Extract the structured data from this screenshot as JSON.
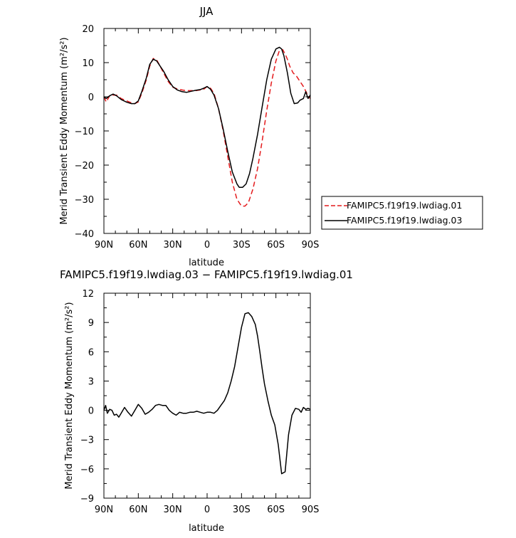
{
  "chart_data": [
    {
      "type": "line",
      "title": "JJA",
      "xlabel": "latitude",
      "ylabel": "Merid Transient Eddy Momentum (m²/s²)",
      "ylim": [
        -40,
        20
      ],
      "xlim": [
        -90,
        90
      ],
      "x_ticks": [
        -90,
        -60,
        -30,
        0,
        30,
        60,
        90
      ],
      "x_tick_labels": [
        "90N",
        "60N",
        "30N",
        "0",
        "30S",
        "60S",
        "90S"
      ],
      "y_ticks": [
        -40,
        -30,
        -20,
        -10,
        0,
        10,
        20
      ],
      "y_tick_labels": [
        "−40",
        "−30",
        "−20",
        "−10",
        "0",
        "10",
        "20"
      ],
      "grid": false,
      "legend": "right",
      "series": [
        {
          "name": "FAMIPC5.f19f19.lwdiag.01",
          "color": "#e41a1c",
          "dash": "dashed",
          "x": [
            -90,
            -88,
            -85,
            -82,
            -79,
            -75,
            -70,
            -66,
            -63,
            -60,
            -57,
            -53,
            -50,
            -47,
            -44,
            -41,
            -38,
            -34,
            -30,
            -26,
            -22,
            -18,
            -14,
            -10,
            -6,
            -3,
            0,
            3,
            6,
            10,
            14,
            18,
            22,
            26,
            30,
            33,
            36,
            40,
            44,
            48,
            52,
            56,
            60,
            63,
            66,
            68,
            70,
            72,
            75,
            78,
            81,
            84,
            87,
            89,
            90
          ],
          "y": [
            0,
            -1.5,
            0.3,
            0.5,
            0.5,
            -0.5,
            -1.2,
            -1.8,
            -2.0,
            -1.5,
            1.0,
            5.0,
            9.0,
            11.2,
            10.8,
            9.0,
            7.0,
            4.5,
            2.8,
            2.3,
            2.0,
            1.8,
            1.8,
            1.8,
            2.0,
            2.2,
            3.0,
            2.5,
            1.0,
            -3.5,
            -10.0,
            -17.5,
            -25.0,
            -30.0,
            -32.0,
            -32.0,
            -31.0,
            -27.0,
            -21.0,
            -13.0,
            -4.0,
            4.0,
            10.5,
            13.5,
            13.8,
            12.5,
            11.0,
            9.0,
            7.0,
            6.0,
            4.5,
            3.0,
            1.0,
            -0.2,
            -0.5
          ]
        },
        {
          "name": "FAMIPC5.f19f19.lwdiag.03",
          "color": "#000000",
          "dash": "solid",
          "x": [
            -90,
            -88,
            -85,
            -82,
            -79,
            -75,
            -70,
            -66,
            -63,
            -60,
            -57,
            -53,
            -50,
            -47,
            -44,
            -41,
            -38,
            -34,
            -30,
            -26,
            -22,
            -18,
            -14,
            -10,
            -6,
            -3,
            0,
            3,
            6,
            10,
            14,
            18,
            22,
            26,
            28,
            31,
            34,
            37,
            40,
            44,
            48,
            52,
            56,
            60,
            63,
            65,
            67,
            70,
            73,
            76,
            79,
            81,
            84,
            86,
            88,
            90
          ],
          "y": [
            0,
            -0.5,
            0.3,
            0.8,
            0.3,
            -0.8,
            -1.6,
            -2.0,
            -2.0,
            -1.2,
            1.5,
            5.5,
            9.5,
            11.0,
            10.5,
            9.0,
            7.5,
            5.0,
            3.0,
            2.0,
            1.5,
            1.3,
            1.6,
            1.9,
            2.1,
            2.5,
            3.0,
            2.2,
            0.5,
            -3.5,
            -9.5,
            -16.0,
            -22.0,
            -25.5,
            -26.5,
            -26.5,
            -25.5,
            -22.5,
            -18.0,
            -11.0,
            -3.0,
            5.0,
            11.0,
            14.0,
            14.5,
            14.0,
            12.0,
            7.0,
            1.0,
            -2.0,
            -1.8,
            -1.0,
            -0.5,
            1.5,
            -0.5,
            0.5
          ]
        }
      ]
    },
    {
      "type": "line",
      "title": "FAMIPC5.f19f19.lwdiag.03 − FAMIPC5.f19f19.lwdiag.01",
      "xlabel": "latitude",
      "ylabel": "Merid Transient Eddy Momentum (m²/s²)",
      "ylim": [
        -9,
        12
      ],
      "xlim": [
        -90,
        90
      ],
      "x_ticks": [
        -90,
        -60,
        -30,
        0,
        30,
        60,
        90
      ],
      "x_tick_labels": [
        "90N",
        "60N",
        "30N",
        "0",
        "30S",
        "60S",
        "90S"
      ],
      "y_ticks": [
        -9,
        -6,
        -3,
        0,
        3,
        6,
        9,
        12
      ],
      "y_tick_labels": [
        "−9",
        "−6",
        "−3",
        "0",
        "3",
        "6",
        "9",
        "12"
      ],
      "grid": false,
      "series": [
        {
          "color": "#000000",
          "dash": "solid",
          "x": [
            -90,
            -88.5,
            -87,
            -85,
            -83,
            -81,
            -79,
            -77,
            -75,
            -72,
            -69,
            -66,
            -63,
            -60,
            -57,
            -54,
            -51,
            -48,
            -45,
            -42,
            -39,
            -36,
            -33,
            -30,
            -27,
            -24,
            -21,
            -18,
            -15,
            -12,
            -9,
            -6,
            -3,
            0,
            3,
            6,
            9,
            12,
            15,
            18,
            21,
            24,
            27,
            30,
            33,
            36,
            39,
            42,
            44,
            46,
            48,
            50,
            53,
            56,
            59,
            62,
            65,
            68,
            71,
            74,
            77,
            80,
            82,
            84,
            86,
            88,
            90
          ],
          "y": [
            0,
            0.5,
            -0.3,
            0.1,
            0,
            -0.5,
            -0.4,
            -0.7,
            -0.3,
            0.3,
            -0.2,
            -0.6,
            0,
            0.6,
            0.2,
            -0.4,
            -0.2,
            0.1,
            0.5,
            0.6,
            0.5,
            0.5,
            0,
            -0.3,
            -0.5,
            -0.2,
            -0.3,
            -0.3,
            -0.2,
            -0.2,
            -0.1,
            -0.2,
            -0.3,
            -0.2,
            -0.2,
            -0.3,
            0,
            0.5,
            1.0,
            1.8,
            3.0,
            4.5,
            6.5,
            8.5,
            9.9,
            10.0,
            9.6,
            8.8,
            7.6,
            6.0,
            4.3,
            2.7,
            1.0,
            -0.5,
            -1.5,
            -3.5,
            -6.5,
            -6.3,
            -2.5,
            -0.5,
            0.2,
            0.1,
            -0.2,
            0.3,
            0.1,
            0.2,
            0.1
          ]
        }
      ]
    }
  ]
}
